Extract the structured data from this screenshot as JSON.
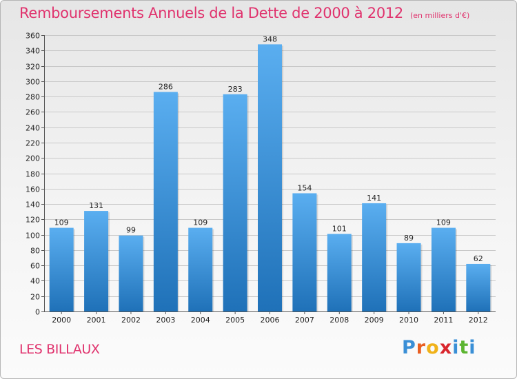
{
  "title": "Remboursements Annuels de la Dette de 2000 à 2012",
  "subtitle": "(en milliers d'€)",
  "place_name": "LES BILLAUX",
  "logo": {
    "letters": [
      "P",
      "r",
      "o",
      "x",
      "i",
      "t",
      "i"
    ],
    "colors": [
      "#3a8fd6",
      "#e95f22",
      "#f0b21a",
      "#d9262d",
      "#3a8fd6",
      "#5cb531",
      "#3a8fd6"
    ]
  },
  "chart_data": {
    "type": "bar",
    "categories": [
      "2000",
      "2001",
      "2002",
      "2003",
      "2004",
      "2005",
      "2006",
      "2007",
      "2008",
      "2009",
      "2010",
      "2011",
      "2012"
    ],
    "values": [
      109,
      131,
      99,
      286,
      109,
      283,
      348,
      154,
      101,
      141,
      89,
      109,
      62
    ],
    "ylim": [
      0,
      360
    ],
    "yticks": [
      0,
      20,
      40,
      60,
      80,
      100,
      120,
      140,
      160,
      180,
      200,
      220,
      240,
      260,
      280,
      300,
      320,
      340,
      360
    ],
    "grid": true,
    "bar_color_top": "#5aaef0",
    "bar_color_bottom": "#1f71b8",
    "accent_color": "#e0326d"
  }
}
